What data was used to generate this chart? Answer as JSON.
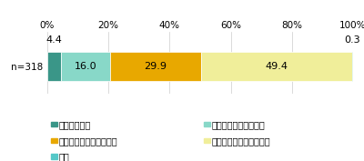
{
  "segments": [
    {
      "label": "想定していた",
      "value": 4.4,
      "color": "#3a9688"
    },
    {
      "label": "ある程度想定していた",
      "value": 16.0,
      "color": "#88d8c8"
    },
    {
      "label": "あまり想定してなかった",
      "value": 29.9,
      "color": "#e8a800"
    },
    {
      "label": "全く想定していなかった",
      "value": 49.4,
      "color": "#f0ee9a"
    },
    {
      "label": "不明",
      "value": 0.3,
      "color": "#55c8c8"
    }
  ],
  "xlim": [
    0,
    100
  ],
  "xticks": [
    0,
    20,
    40,
    60,
    80,
    100
  ],
  "xticklabels": [
    "0%",
    "20%",
    "40%",
    "60%",
    "80%",
    "100%"
  ],
  "label_fontsize": 8,
  "tick_fontsize": 7.5,
  "legend_fontsize": 7,
  "n_label": "n=318",
  "background_color": "#ffffff",
  "grid_color": "#cccccc",
  "small_label_4_4": "4.4",
  "small_label_0_3": "0.3"
}
